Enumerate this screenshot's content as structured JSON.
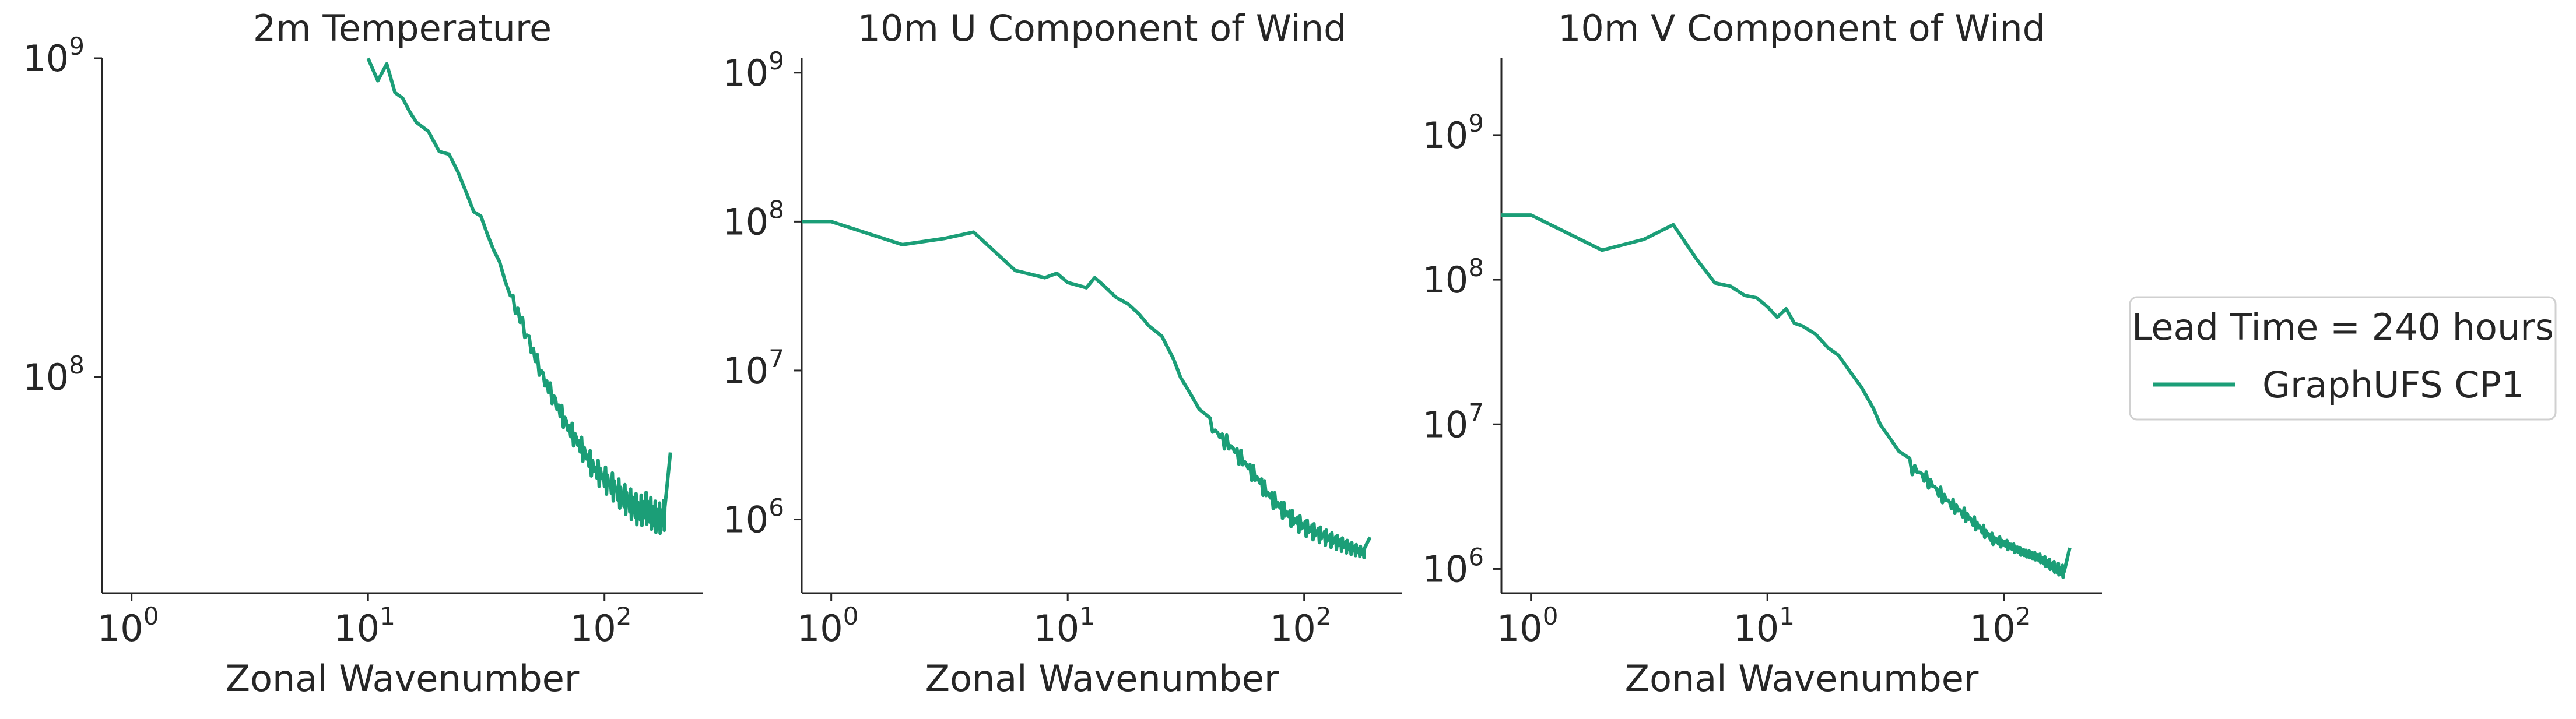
{
  "chart_data": [
    {
      "type": "line",
      "title": "2m Temperature",
      "xlabel": "Zonal Wavenumber",
      "ylabel": "",
      "x_scale": "log",
      "y_scale": "log",
      "xlim": [
        0.75,
        260
      ],
      "ylim": [
        21000000,
        1000000000
      ],
      "x_ticks": [
        {
          "base": "10",
          "exp": "0",
          "value": 1
        },
        {
          "base": "10",
          "exp": "1",
          "value": 10
        },
        {
          "base": "10",
          "exp": "2",
          "value": 100
        }
      ],
      "y_ticks": [
        {
          "base": "10",
          "exp": "8",
          "value": 100000000
        },
        {
          "base": "10",
          "exp": "9",
          "value": 1000000000
        }
      ],
      "series": [
        {
          "color": "#1b9e77",
          "x": [
            10,
            11,
            12,
            13,
            14,
            15,
            16,
            18,
            20,
            22,
            24,
            26,
            28,
            30,
            32,
            34,
            36,
            38,
            40,
            43,
            46,
            50,
            55,
            60,
            65,
            70,
            80,
            90,
            100,
            110,
            120,
            130,
            140,
            150,
            160,
            170,
            180,
            190
          ],
          "y": [
            1000000000,
            850000000,
            960000000,
            780000000,
            750000000,
            680000000,
            630000000,
            590000000,
            510000000,
            500000000,
            440000000,
            380000000,
            330000000,
            320000000,
            280000000,
            250000000,
            230000000,
            200000000,
            180000000,
            160000000,
            140000000,
            120000000,
            100000000,
            88000000,
            78000000,
            70000000,
            60000000,
            52000000,
            48000000,
            45000000,
            42000000,
            40000000,
            38000000,
            39000000,
            37000000,
            36000000,
            37000000,
            58000000
          ],
          "noise_band": {
            "from_x": 40,
            "rel_amp": 0.12
          }
        }
      ]
    },
    {
      "type": "line",
      "title": "10m U Component of Wind",
      "xlabel": "Zonal Wavenumber",
      "ylabel": "",
      "x_scale": "log",
      "y_scale": "log",
      "xlim": [
        0.75,
        260
      ],
      "ylim": [
        320000,
        1250000000
      ],
      "x_ticks": [
        {
          "base": "10",
          "exp": "0",
          "value": 1
        },
        {
          "base": "10",
          "exp": "1",
          "value": 10
        },
        {
          "base": "10",
          "exp": "2",
          "value": 100
        }
      ],
      "y_ticks": [
        {
          "base": "10",
          "exp": "6",
          "value": 1000000
        },
        {
          "base": "10",
          "exp": "7",
          "value": 10000000
        },
        {
          "base": "10",
          "exp": "8",
          "value": 100000000
        },
        {
          "base": "10",
          "exp": "9",
          "value": 1000000000
        }
      ],
      "series": [
        {
          "color": "#1b9e77",
          "x": [
            0.75,
            1,
            2,
            3,
            4,
            6,
            8,
            9,
            10,
            12,
            13,
            14,
            16,
            18,
            20,
            22,
            25,
            28,
            30,
            33,
            36,
            40,
            45,
            50,
            55,
            60,
            65,
            70,
            80,
            90,
            100,
            120,
            140,
            160,
            180,
            190
          ],
          "y": [
            100000000,
            100000000,
            70000000,
            77000000,
            85000000,
            47000000,
            42000000,
            45000000,
            39000000,
            36000000,
            42000000,
            38000000,
            31000000,
            28000000,
            24000000,
            20000000,
            17000000,
            12000000,
            9000000,
            7000000,
            5500000,
            4300000,
            3500000,
            3000000,
            2500000,
            2100000,
            1800000,
            1500000,
            1200000,
            1000000,
            900000,
            780000,
            700000,
            640000,
            600000,
            760000
          ],
          "noise_band": {
            "from_x": 40,
            "rel_amp": 0.14
          }
        }
      ]
    },
    {
      "type": "line",
      "title": "10m V Component of Wind",
      "xlabel": "Zonal Wavenumber",
      "ylabel": "",
      "x_scale": "log",
      "y_scale": "log",
      "xlim": [
        0.75,
        260
      ],
      "ylim": [
        680000,
        3400000000
      ],
      "x_ticks": [
        {
          "base": "10",
          "exp": "0",
          "value": 1
        },
        {
          "base": "10",
          "exp": "1",
          "value": 10
        },
        {
          "base": "10",
          "exp": "2",
          "value": 100
        }
      ],
      "y_ticks": [
        {
          "base": "10",
          "exp": "6",
          "value": 1000000
        },
        {
          "base": "10",
          "exp": "7",
          "value": 10000000
        },
        {
          "base": "10",
          "exp": "8",
          "value": 100000000
        },
        {
          "base": "10",
          "exp": "9",
          "value": 1000000000
        }
      ],
      "series": [
        {
          "color": "#1b9e77",
          "x": [
            0.75,
            1,
            2,
            3,
            4,
            5,
            6,
            7,
            8,
            9,
            10,
            11,
            12,
            13,
            14,
            16,
            18,
            20,
            22,
            25,
            28,
            30,
            33,
            36,
            40,
            45,
            50,
            55,
            60,
            70,
            80,
            90,
            100,
            120,
            140,
            160,
            180,
            190
          ],
          "y": [
            280000000,
            280000000,
            160000000,
            190000000,
            240000000,
            140000000,
            95000000,
            90000000,
            78000000,
            75000000,
            65000000,
            55000000,
            63000000,
            50000000,
            48000000,
            42000000,
            34000000,
            30000000,
            24000000,
            18000000,
            13000000,
            10000000,
            8000000,
            6500000,
            5200000,
            4500000,
            3800000,
            3200000,
            2800000,
            2300000,
            1900000,
            1600000,
            1500000,
            1300000,
            1200000,
            1050000,
            950000,
            1400000
          ],
          "noise_band": {
            "from_x": 40,
            "rel_amp": 0.13
          }
        }
      ]
    }
  ],
  "legend": {
    "placement": "right",
    "title": "Lead Time = 240 hours",
    "entries": [
      {
        "label": "GraphUFS CP1",
        "color": "#1b9e77"
      }
    ]
  }
}
